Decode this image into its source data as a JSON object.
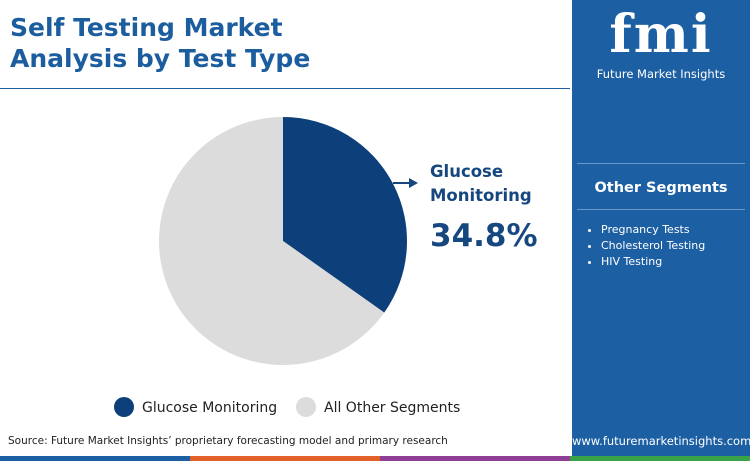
{
  "chart_data": {
    "type": "pie",
    "title": "Self Testing Market Analysis by Test Type",
    "categories": [
      "Glucose Monitoring",
      "All Other Segments"
    ],
    "values": [
      34.8,
      65.2
    ],
    "value_labels": [
      "34.8%",
      null
    ],
    "colors": [
      "#0d3f7a",
      "#dcdcdc"
    ]
  },
  "sidebar": {
    "logo": "fmi",
    "brand": "Future Market Insights",
    "heading": "Other Segments",
    "items": [
      "Pregnancy Tests",
      "Cholesterol Testing",
      "HIV Testing"
    ],
    "website": "www.futuremarketinsights.com"
  },
  "source": "Source: Future Market Insights’ proprietary forecasting model and primary research"
}
